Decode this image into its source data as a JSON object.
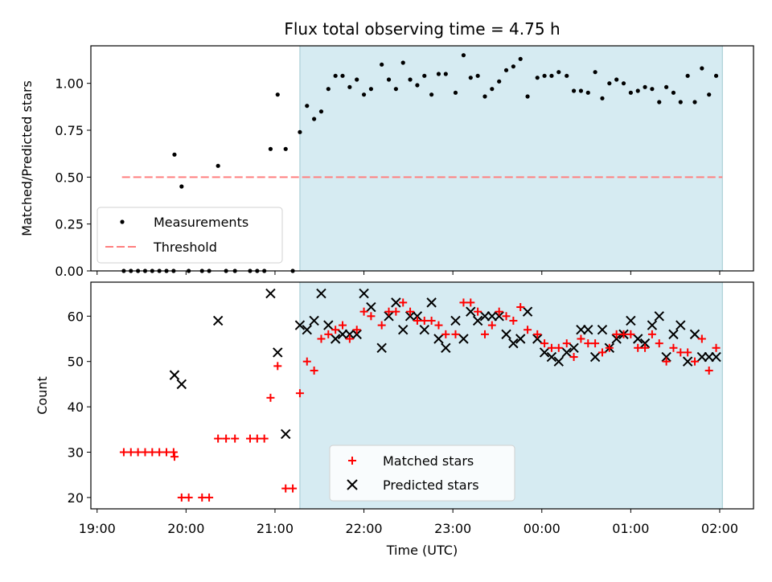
{
  "chart_data": [
    {
      "type": "scatter",
      "title": "Flux total observing time = 4.75 h",
      "xlabel": "",
      "ylabel": "Matched/Predicted stars",
      "xlim": [
        18.93,
        26.38
      ],
      "ylim": [
        0.0,
        1.2
      ],
      "yticks": [
        0.0,
        0.25,
        0.5,
        0.75,
        1.0
      ],
      "ytick_labels": [
        "0.00",
        "0.25",
        "0.50",
        "0.75",
        "1.00"
      ],
      "shaded_span": [
        21.28,
        26.03
      ],
      "threshold": {
        "value": 0.5,
        "x_range": [
          19.28,
          26.03
        ],
        "color": "#ff7f7f"
      },
      "legend": {
        "placement": "lower-left",
        "entries": [
          {
            "label": "Measurements",
            "marker": "dot",
            "color": "#000000"
          },
          {
            "label": "Threshold",
            "marker": "dashed-line",
            "color": "#ff7f7f"
          }
        ]
      },
      "series": [
        {
          "name": "Measurements",
          "color": "#000000",
          "points": [
            [
              19.3,
              0
            ],
            [
              19.38,
              0
            ],
            [
              19.46,
              0
            ],
            [
              19.54,
              0
            ],
            [
              19.62,
              0
            ],
            [
              19.7,
              0
            ],
            [
              19.78,
              0
            ],
            [
              19.86,
              0
            ],
            [
              19.87,
              0.62
            ],
            [
              19.95,
              0.45
            ],
            [
              20.03,
              0
            ],
            [
              20.18,
              0
            ],
            [
              20.26,
              0
            ],
            [
              20.36,
              0.56
            ],
            [
              20.45,
              0
            ],
            [
              20.55,
              0
            ],
            [
              20.72,
              0
            ],
            [
              20.8,
              0
            ],
            [
              20.88,
              0
            ],
            [
              20.95,
              0.65
            ],
            [
              21.03,
              0.94
            ],
            [
              21.12,
              0.65
            ],
            [
              21.2,
              0
            ],
            [
              21.28,
              0.74
            ],
            [
              21.36,
              0.88
            ],
            [
              21.44,
              0.81
            ],
            [
              21.52,
              0.85
            ],
            [
              21.6,
              0.97
            ],
            [
              21.68,
              1.04
            ],
            [
              21.76,
              1.04
            ],
            [
              21.84,
              0.98
            ],
            [
              21.92,
              1.02
            ],
            [
              22.0,
              0.94
            ],
            [
              22.08,
              0.97
            ],
            [
              22.2,
              1.1
            ],
            [
              22.28,
              1.02
            ],
            [
              22.36,
              0.97
            ],
            [
              22.44,
              1.11
            ],
            [
              22.52,
              1.02
            ],
            [
              22.6,
              0.99
            ],
            [
              22.68,
              1.04
            ],
            [
              22.76,
              0.94
            ],
            [
              22.84,
              1.05
            ],
            [
              22.92,
              1.05
            ],
            [
              23.03,
              0.95
            ],
            [
              23.12,
              1.15
            ],
            [
              23.2,
              1.03
            ],
            [
              23.28,
              1.04
            ],
            [
              23.36,
              0.93
            ],
            [
              23.44,
              0.97
            ],
            [
              23.52,
              1.01
            ],
            [
              23.6,
              1.07
            ],
            [
              23.68,
              1.09
            ],
            [
              23.76,
              1.13
            ],
            [
              23.84,
              0.93
            ],
            [
              23.95,
              1.03
            ],
            [
              24.03,
              1.04
            ],
            [
              24.11,
              1.04
            ],
            [
              24.19,
              1.06
            ],
            [
              24.28,
              1.04
            ],
            [
              24.36,
              0.96
            ],
            [
              24.44,
              0.96
            ],
            [
              24.52,
              0.95
            ],
            [
              24.6,
              1.06
            ],
            [
              24.68,
              0.92
            ],
            [
              24.76,
              1.0
            ],
            [
              24.84,
              1.02
            ],
            [
              24.92,
              1.0
            ],
            [
              25.0,
              0.95
            ],
            [
              25.08,
              0.96
            ],
            [
              25.16,
              0.98
            ],
            [
              25.24,
              0.97
            ],
            [
              25.32,
              0.9
            ],
            [
              25.4,
              0.98
            ],
            [
              25.48,
              0.95
            ],
            [
              25.56,
              0.9
            ],
            [
              25.64,
              1.04
            ],
            [
              25.72,
              0.9
            ],
            [
              25.8,
              1.08
            ],
            [
              25.88,
              0.94
            ],
            [
              25.96,
              1.04
            ]
          ]
        }
      ]
    },
    {
      "type": "scatter",
      "title": "",
      "xlabel": "Time (UTC)",
      "ylabel": "Count",
      "xlim": [
        18.93,
        26.38
      ],
      "ylim": [
        17.5,
        67.5
      ],
      "yticks": [
        20,
        30,
        40,
        50,
        60
      ],
      "ytick_labels": [
        "20",
        "30",
        "40",
        "50",
        "60"
      ],
      "xticks": [
        19,
        20,
        21,
        22,
        23,
        24,
        25,
        26
      ],
      "xtick_labels": [
        "19:00",
        "20:00",
        "21:00",
        "22:00",
        "23:00",
        "00:00",
        "01:00",
        "02:00"
      ],
      "shaded_span": [
        21.28,
        26.03
      ],
      "legend": {
        "placement": "lower-center",
        "entries": [
          {
            "label": "Matched stars",
            "marker": "plus",
            "color": "#ff0000"
          },
          {
            "label": "Predicted stars",
            "marker": "x",
            "color": "#000000"
          }
        ]
      },
      "series": [
        {
          "name": "Matched stars",
          "color": "#ff0000",
          "points": [
            [
              19.3,
              30
            ],
            [
              19.38,
              30
            ],
            [
              19.46,
              30
            ],
            [
              19.54,
              30
            ],
            [
              19.62,
              30
            ],
            [
              19.7,
              30
            ],
            [
              19.78,
              30
            ],
            [
              19.86,
              30
            ],
            [
              19.87,
              29
            ],
            [
              19.95,
              20
            ],
            [
              20.03,
              20
            ],
            [
              20.18,
              20
            ],
            [
              20.26,
              20
            ],
            [
              20.36,
              33
            ],
            [
              20.45,
              33
            ],
            [
              20.55,
              33
            ],
            [
              20.72,
              33
            ],
            [
              20.8,
              33
            ],
            [
              20.88,
              33
            ],
            [
              20.95,
              42
            ],
            [
              21.03,
              49
            ],
            [
              21.12,
              22
            ],
            [
              21.2,
              22
            ],
            [
              21.28,
              43
            ],
            [
              21.36,
              50
            ],
            [
              21.44,
              48
            ],
            [
              21.52,
              55
            ],
            [
              21.6,
              56
            ],
            [
              21.68,
              57
            ],
            [
              21.76,
              58
            ],
            [
              21.84,
              55
            ],
            [
              21.92,
              57
            ],
            [
              22.0,
              61
            ],
            [
              22.08,
              60
            ],
            [
              22.2,
              58
            ],
            [
              22.28,
              61
            ],
            [
              22.36,
              61
            ],
            [
              22.44,
              63
            ],
            [
              22.52,
              61
            ],
            [
              22.6,
              59
            ],
            [
              22.68,
              59
            ],
            [
              22.76,
              59
            ],
            [
              22.84,
              58
            ],
            [
              22.92,
              56
            ],
            [
              23.03,
              56
            ],
            [
              23.12,
              63
            ],
            [
              23.2,
              63
            ],
            [
              23.28,
              61
            ],
            [
              23.36,
              56
            ],
            [
              23.44,
              58
            ],
            [
              23.52,
              61
            ],
            [
              23.6,
              60
            ],
            [
              23.68,
              59
            ],
            [
              23.76,
              62
            ],
            [
              23.84,
              57
            ],
            [
              23.95,
              56
            ],
            [
              24.03,
              54
            ],
            [
              24.11,
              53
            ],
            [
              24.19,
              53
            ],
            [
              24.28,
              54
            ],
            [
              24.36,
              51
            ],
            [
              24.44,
              55
            ],
            [
              24.52,
              54
            ],
            [
              24.6,
              54
            ],
            [
              24.68,
              52
            ],
            [
              24.76,
              53
            ],
            [
              24.84,
              56
            ],
            [
              24.92,
              56
            ],
            [
              25.0,
              56
            ],
            [
              25.08,
              53
            ],
            [
              25.16,
              53
            ],
            [
              25.24,
              56
            ],
            [
              25.32,
              54
            ],
            [
              25.4,
              50
            ],
            [
              25.48,
              53
            ],
            [
              25.56,
              52
            ],
            [
              25.64,
              52
            ],
            [
              25.72,
              50
            ],
            [
              25.8,
              55
            ],
            [
              25.88,
              48
            ],
            [
              25.96,
              53
            ]
          ]
        },
        {
          "name": "Predicted stars",
          "color": "#000000",
          "points": [
            [
              19.87,
              47
            ],
            [
              19.95,
              45
            ],
            [
              20.36,
              59
            ],
            [
              20.95,
              65
            ],
            [
              21.03,
              52
            ],
            [
              21.12,
              34
            ],
            [
              21.28,
              58
            ],
            [
              21.36,
              57
            ],
            [
              21.44,
              59
            ],
            [
              21.52,
              65
            ],
            [
              21.6,
              58
            ],
            [
              21.68,
              55
            ],
            [
              21.76,
              56
            ],
            [
              21.84,
              56
            ],
            [
              21.92,
              56
            ],
            [
              22.0,
              65
            ],
            [
              22.08,
              62
            ],
            [
              22.2,
              53
            ],
            [
              22.28,
              60
            ],
            [
              22.36,
              63
            ],
            [
              22.44,
              57
            ],
            [
              22.52,
              60
            ],
            [
              22.6,
              60
            ],
            [
              22.68,
              57
            ],
            [
              22.76,
              63
            ],
            [
              22.84,
              55
            ],
            [
              22.92,
              53
            ],
            [
              23.03,
              59
            ],
            [
              23.12,
              55
            ],
            [
              23.2,
              61
            ],
            [
              23.28,
              59
            ],
            [
              23.36,
              60
            ],
            [
              23.44,
              60
            ],
            [
              23.52,
              60
            ],
            [
              23.6,
              56
            ],
            [
              23.68,
              54
            ],
            [
              23.76,
              55
            ],
            [
              23.84,
              61
            ],
            [
              23.95,
              55
            ],
            [
              24.03,
              52
            ],
            [
              24.11,
              51
            ],
            [
              24.19,
              50
            ],
            [
              24.28,
              52
            ],
            [
              24.36,
              53
            ],
            [
              24.44,
              57
            ],
            [
              24.52,
              57
            ],
            [
              24.6,
              51
            ],
            [
              24.68,
              57
            ],
            [
              24.76,
              53
            ],
            [
              24.84,
              55
            ],
            [
              24.92,
              56
            ],
            [
              25.0,
              59
            ],
            [
              25.08,
              55
            ],
            [
              25.16,
              54
            ],
            [
              25.24,
              58
            ],
            [
              25.32,
              60
            ],
            [
              25.4,
              51
            ],
            [
              25.48,
              56
            ],
            [
              25.56,
              58
            ],
            [
              25.64,
              50
            ],
            [
              25.72,
              56
            ],
            [
              25.8,
              51
            ],
            [
              25.88,
              51
            ],
            [
              25.96,
              51
            ]
          ]
        }
      ]
    }
  ]
}
